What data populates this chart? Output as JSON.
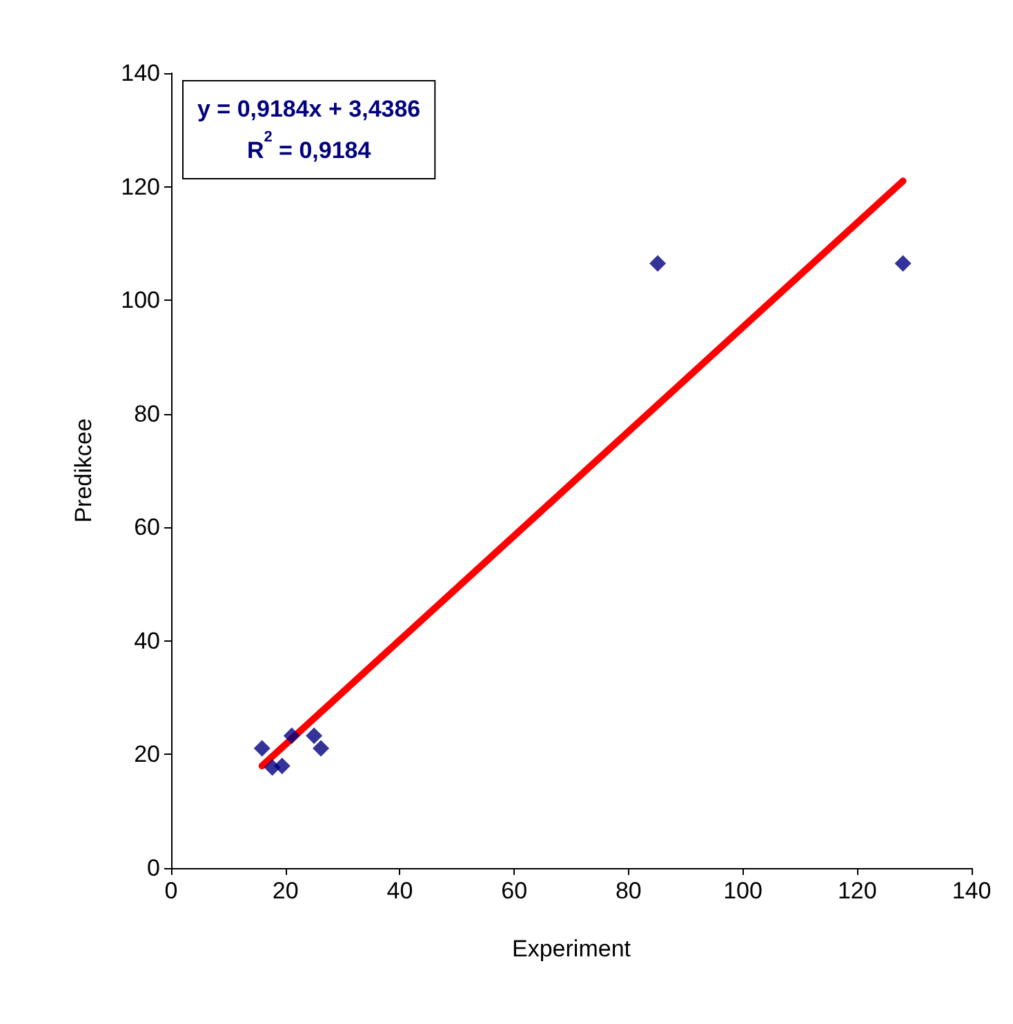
{
  "chart_data": {
    "type": "scatter",
    "xlabel": "Experiment",
    "ylabel": "Predikcee",
    "annotations": [
      "y = 0,9184x + 3,4386",
      "R$^{2}$ = 0,9184"
    ],
    "series": [
      {
        "color": "#000080",
        "marker": "diamond",
        "x": [
          15.9,
          17.7,
          19.4,
          21.1,
          25.0,
          26.2,
          85.1,
          128.0
        ],
        "values": [
          21.1,
          17.7,
          18.0,
          23.3,
          23.3,
          21.1,
          106.5,
          106.5
        ]
      },
      {
        "type": "line",
        "color": "#ff0000",
        "line_style": "solid",
        "marker": "none",
        "x": [
          15.9,
          128.0
        ],
        "values": [
          18.0,
          121.0
        ]
      }
    ],
    "xlim": [
      0,
      140
    ],
    "xticks": [
      0,
      20,
      40,
      60,
      80,
      100,
      120,
      140
    ],
    "ylim": [
      0,
      140
    ],
    "yticks": [
      0,
      20,
      40,
      60,
      80,
      100,
      120,
      140
    ],
    "grid": false
  }
}
